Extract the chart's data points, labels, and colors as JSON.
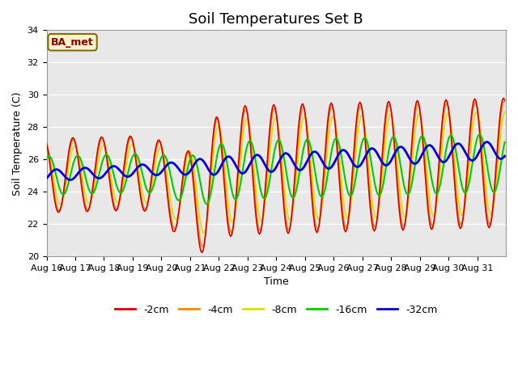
{
  "title": "Soil Temperatures Set B",
  "xlabel": "Time",
  "ylabel": "Soil Temperature (C)",
  "ylim": [
    20,
    34
  ],
  "yticks": [
    20,
    22,
    24,
    26,
    28,
    30,
    32,
    34
  ],
  "xtick_labels": [
    "Aug 16",
    "Aug 17",
    "Aug 18",
    "Aug 19",
    "Aug 20",
    "Aug 21",
    "Aug 22",
    "Aug 23",
    "Aug 24",
    "Aug 25",
    "Aug 26",
    "Aug 27",
    "Aug 28",
    "Aug 29",
    "Aug 30",
    "Aug 31"
  ],
  "legend_labels": [
    "-2cm",
    "-4cm",
    "-8cm",
    "-16cm",
    "-32cm"
  ],
  "legend_colors": [
    "#dd0000",
    "#ff8800",
    "#dddd00",
    "#00cc00",
    "#0000dd"
  ],
  "line_widths": [
    1.2,
    1.2,
    1.2,
    1.5,
    2.0
  ],
  "annotation_text": "BA_met",
  "plot_bg_color": "#e8e8e8",
  "title_fontsize": 13,
  "label_fontsize": 9,
  "tick_fontsize": 8
}
